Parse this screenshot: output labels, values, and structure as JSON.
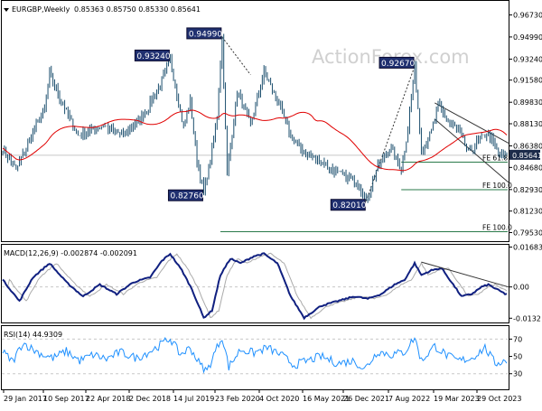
{
  "chart_data": [
    {
      "type": "ohlc",
      "header": {
        "symbol_label": "EURGBP,Weekly",
        "ohlc_values": "0.85363 0.85750 0.85330 0.85641"
      },
      "watermark": "ActionForex.com",
      "x_labels": [
        "29 Jan 2017",
        "10 Sep 2017",
        "22 Apr 2018",
        "2 Dec 2018",
        "14 Jul 2019",
        "23 Feb 2020",
        "4 Oct 2020",
        "16 May 2021",
        "26 Dec 2021",
        "7 Aug 2022",
        "19 Mar 2023",
        "29 Oct 2023"
      ],
      "ylim": [
        0.7885,
        0.9784
      ],
      "y_ticks": [
        "0.96730",
        "0.94990",
        "0.93240",
        "0.91580",
        "0.89830",
        "0.88130",
        "0.86380",
        "0.84680",
        "0.82930",
        "0.81230",
        "0.79530"
      ],
      "last_price": "0.85641",
      "price_anchors": [
        {
          "i": 0,
          "v": 0.862
        },
        {
          "i": 8,
          "v": 0.845
        },
        {
          "i": 17,
          "v": 0.872
        },
        {
          "i": 25,
          "v": 0.893
        },
        {
          "i": 28,
          "v": 0.922
        },
        {
          "i": 33,
          "v": 0.905
        },
        {
          "i": 45,
          "v": 0.872
        },
        {
          "i": 60,
          "v": 0.88
        },
        {
          "i": 72,
          "v": 0.872
        },
        {
          "i": 85,
          "v": 0.89
        },
        {
          "i": 94,
          "v": 0.912
        },
        {
          "i": 100,
          "v": 0.9324
        },
        {
          "i": 108,
          "v": 0.878
        },
        {
          "i": 112,
          "v": 0.899
        },
        {
          "i": 116,
          "v": 0.852
        },
        {
          "i": 120,
          "v": 0.8276
        },
        {
          "i": 125,
          "v": 0.86
        },
        {
          "i": 128,
          "v": 0.888
        },
        {
          "i": 131,
          "v": 0.9499
        },
        {
          "i": 134,
          "v": 0.842
        },
        {
          "i": 140,
          "v": 0.907
        },
        {
          "i": 148,
          "v": 0.88
        },
        {
          "i": 156,
          "v": 0.922
        },
        {
          "i": 165,
          "v": 0.897
        },
        {
          "i": 172,
          "v": 0.872
        },
        {
          "i": 180,
          "v": 0.858
        },
        {
          "i": 190,
          "v": 0.852
        },
        {
          "i": 200,
          "v": 0.842
        },
        {
          "i": 212,
          "v": 0.835
        },
        {
          "i": 217,
          "v": 0.8201
        },
        {
          "i": 224,
          "v": 0.848
        },
        {
          "i": 232,
          "v": 0.862
        },
        {
          "i": 238,
          "v": 0.845
        },
        {
          "i": 242,
          "v": 0.878
        },
        {
          "i": 246,
          "v": 0.9267
        },
        {
          "i": 250,
          "v": 0.86
        },
        {
          "i": 256,
          "v": 0.875
        },
        {
          "i": 260,
          "v": 0.896
        },
        {
          "i": 266,
          "v": 0.883
        },
        {
          "i": 272,
          "v": 0.876
        },
        {
          "i": 278,
          "v": 0.858
        },
        {
          "i": 284,
          "v": 0.868
        },
        {
          "i": 290,
          "v": 0.874
        },
        {
          "i": 296,
          "v": 0.857
        },
        {
          "i": 300,
          "v": 0.8564
        }
      ],
      "callouts": [
        {
          "text": "0.93240",
          "i": 100,
          "v": 0.9324,
          "pos": "left"
        },
        {
          "text": "0.82760",
          "i": 120,
          "v": 0.8276,
          "pos": "left"
        },
        {
          "text": "0.94990",
          "i": 131,
          "v": 0.9499,
          "pos": "left"
        },
        {
          "text": "0.82010",
          "i": 217,
          "v": 0.8201,
          "pos": "left"
        },
        {
          "text": "0.92670",
          "i": 246,
          "v": 0.9267,
          "pos": "left"
        }
      ],
      "fib_levels": [
        {
          "label": "FE 61.8",
          "v": 0.851,
          "i_start": 238
        },
        {
          "label": "FE 100.0",
          "v": 0.8292,
          "i_start": 238
        },
        {
          "label": "FE 100.0",
          "v": 0.796,
          "i_start": 130
        }
      ],
      "channel": [
        {
          "i1": 258,
          "v1": 0.8978,
          "i2": 302,
          "v2": 0.866
        },
        {
          "i1": 258,
          "v1": 0.885,
          "i2": 302,
          "v2": 0.835
        }
      ],
      "dotted_lines": [
        {
          "i1": 131,
          "v1": 0.9499,
          "i2": 148,
          "v2": 0.92
        },
        {
          "i1": 217,
          "v1": 0.8201,
          "i2": 246,
          "v2": 0.9267
        }
      ],
      "colors": {
        "price": "#1c4f6e",
        "sma": "#e00000",
        "callout_bg": "#203070",
        "macd": "#102080",
        "macd_signal": "#aaaaaa",
        "rsi": "#1e90ff",
        "grid": "#c8c8c8"
      }
    },
    {
      "type": "line",
      "label": "MACD(12,26,9) -0.002874 -0.002091",
      "ylim": [
        -0.015,
        0.0178
      ],
      "y_ticks": [
        "0.016838",
        "0.00",
        "-0.0132"
      ],
      "last_value": "0.00",
      "anchors": [
        {
          "i": 0,
          "v": 0.003
        },
        {
          "i": 10,
          "v": -0.006
        },
        {
          "i": 18,
          "v": 0.004
        },
        {
          "i": 28,
          "v": 0.01
        },
        {
          "i": 38,
          "v": 0.002
        },
        {
          "i": 48,
          "v": -0.004
        },
        {
          "i": 58,
          "v": 0.001
        },
        {
          "i": 68,
          "v": -0.003
        },
        {
          "i": 78,
          "v": 0.002
        },
        {
          "i": 88,
          "v": 0.004
        },
        {
          "i": 95,
          "v": 0.011
        },
        {
          "i": 100,
          "v": 0.014
        },
        {
          "i": 107,
          "v": 0.007
        },
        {
          "i": 113,
          "v": -0.001
        },
        {
          "i": 120,
          "v": -0.013
        },
        {
          "i": 125,
          "v": -0.01
        },
        {
          "i": 130,
          "v": 0.005
        },
        {
          "i": 136,
          "v": 0.012
        },
        {
          "i": 142,
          "v": 0.01
        },
        {
          "i": 150,
          "v": 0.013
        },
        {
          "i": 156,
          "v": 0.014
        },
        {
          "i": 164,
          "v": 0.01
        },
        {
          "i": 172,
          "v": -0.004
        },
        {
          "i": 180,
          "v": -0.013
        },
        {
          "i": 190,
          "v": -0.008
        },
        {
          "i": 200,
          "v": -0.006
        },
        {
          "i": 210,
          "v": -0.004
        },
        {
          "i": 218,
          "v": -0.005
        },
        {
          "i": 226,
          "v": -0.003
        },
        {
          "i": 234,
          "v": 0.001
        },
        {
          "i": 240,
          "v": 0.003
        },
        {
          "i": 246,
          "v": 0.01
        },
        {
          "i": 250,
          "v": 0.005
        },
        {
          "i": 256,
          "v": 0.007
        },
        {
          "i": 262,
          "v": 0.008
        },
        {
          "i": 268,
          "v": 0.002
        },
        {
          "i": 274,
          "v": -0.004
        },
        {
          "i": 280,
          "v": -0.003
        },
        {
          "i": 286,
          "v": 0.0
        },
        {
          "i": 290,
          "v": 0.001
        },
        {
          "i": 295,
          "v": -0.001
        },
        {
          "i": 300,
          "v": -0.0029
        }
      ],
      "trendline": {
        "i1": 250,
        "v1": 0.0105,
        "i2": 302,
        "v2": 0.0
      }
    },
    {
      "type": "line",
      "label": "RSI(14) 44.9309",
      "ylim": [
        12,
        85
      ],
      "y_ticks": [
        "70",
        "50",
        "30"
      ],
      "levels": [
        70,
        30
      ],
      "anchors": [
        {
          "i": 0,
          "v": 55
        },
        {
          "i": 6,
          "v": 44
        },
        {
          "i": 12,
          "v": 66
        },
        {
          "i": 18,
          "v": 58
        },
        {
          "i": 24,
          "v": 52
        },
        {
          "i": 30,
          "v": 48
        },
        {
          "i": 38,
          "v": 56
        },
        {
          "i": 46,
          "v": 45
        },
        {
          "i": 54,
          "v": 52
        },
        {
          "i": 62,
          "v": 47
        },
        {
          "i": 70,
          "v": 55
        },
        {
          "i": 80,
          "v": 48
        },
        {
          "i": 90,
          "v": 58
        },
        {
          "i": 100,
          "v": 71
        },
        {
          "i": 106,
          "v": 52
        },
        {
          "i": 112,
          "v": 60
        },
        {
          "i": 118,
          "v": 40
        },
        {
          "i": 122,
          "v": 33
        },
        {
          "i": 127,
          "v": 56
        },
        {
          "i": 131,
          "v": 73
        },
        {
          "i": 135,
          "v": 38
        },
        {
          "i": 142,
          "v": 58
        },
        {
          "i": 150,
          "v": 54
        },
        {
          "i": 158,
          "v": 60
        },
        {
          "i": 166,
          "v": 52
        },
        {
          "i": 174,
          "v": 40
        },
        {
          "i": 182,
          "v": 45
        },
        {
          "i": 190,
          "v": 50
        },
        {
          "i": 200,
          "v": 42
        },
        {
          "i": 210,
          "v": 45
        },
        {
          "i": 216,
          "v": 35
        },
        {
          "i": 224,
          "v": 56
        },
        {
          "i": 232,
          "v": 52
        },
        {
          "i": 240,
          "v": 55
        },
        {
          "i": 246,
          "v": 72
        },
        {
          "i": 250,
          "v": 45
        },
        {
          "i": 258,
          "v": 62
        },
        {
          "i": 266,
          "v": 50
        },
        {
          "i": 272,
          "v": 45
        },
        {
          "i": 280,
          "v": 48
        },
        {
          "i": 288,
          "v": 60
        },
        {
          "i": 294,
          "v": 42
        },
        {
          "i": 300,
          "v": 45
        }
      ]
    }
  ]
}
